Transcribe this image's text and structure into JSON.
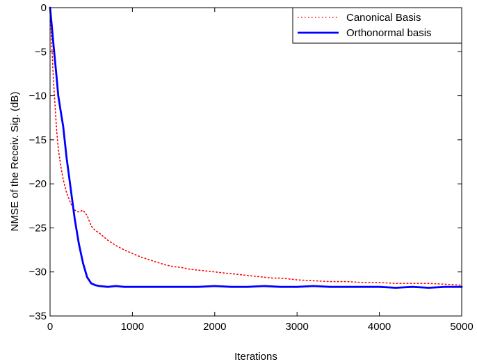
{
  "chart_data": {
    "type": "line",
    "title": "",
    "xlabel": "Iterations",
    "ylabel": "NMSE of the Receiv. Sig. (dB)",
    "xlim": [
      0,
      5000
    ],
    "ylim": [
      -35,
      0
    ],
    "xticks": [
      0,
      1000,
      2000,
      3000,
      4000,
      5000
    ],
    "yticks": [
      0,
      -5,
      -10,
      -15,
      -20,
      -25,
      -30,
      -35
    ],
    "xtick_labels": [
      "0",
      "1000",
      "2000",
      "3000",
      "4000",
      "5000"
    ],
    "ytick_labels": [
      "0",
      "−5",
      "−10",
      "−15",
      "−20",
      "−25",
      "−30",
      "−35"
    ],
    "grid": false,
    "legend_position": "top-right",
    "series": [
      {
        "name": "Canonical Basis",
        "color": "#ff0000",
        "style": "dotted",
        "x": [
          0,
          20,
          40,
          60,
          80,
          100,
          130,
          160,
          200,
          250,
          300,
          350,
          400,
          450,
          500,
          550,
          600,
          700,
          800,
          900,
          1000,
          1100,
          1200,
          1300,
          1400,
          1500,
          1600,
          1700,
          1800,
          1900,
          2000,
          2100,
          2200,
          2300,
          2400,
          2500,
          2600,
          2700,
          2800,
          2900,
          3000,
          3200,
          3400,
          3600,
          3800,
          4000,
          4200,
          4400,
          4600,
          4800,
          5000
        ],
        "y": [
          0,
          -4,
          -8,
          -11,
          -14,
          -16,
          -18,
          -19.5,
          -21,
          -22.2,
          -23,
          -23.2,
          -23,
          -23.6,
          -24.8,
          -25.3,
          -25.6,
          -26.4,
          -27,
          -27.5,
          -27.9,
          -28.3,
          -28.6,
          -28.9,
          -29.2,
          -29.4,
          -29.5,
          -29.7,
          -29.8,
          -29.9,
          -30,
          -30.1,
          -30.2,
          -30.3,
          -30.4,
          -30.5,
          -30.6,
          -30.7,
          -30.7,
          -30.8,
          -30.9,
          -31,
          -31.1,
          -31.1,
          -31.2,
          -31.2,
          -31.3,
          -31.3,
          -31.3,
          -31.4,
          -31.5
        ]
      },
      {
        "name": "Orthonormal basis",
        "color": "#0000ff",
        "style": "solid",
        "x": [
          0,
          20,
          40,
          60,
          80,
          100,
          130,
          160,
          200,
          250,
          300,
          350,
          400,
          450,
          500,
          550,
          600,
          700,
          800,
          900,
          1000,
          1200,
          1400,
          1600,
          1800,
          2000,
          2200,
          2400,
          2600,
          2800,
          3000,
          3200,
          3400,
          3600,
          3800,
          4000,
          4200,
          4400,
          4600,
          4800,
          5000
        ],
        "y": [
          0,
          -2,
          -4,
          -6,
          -8,
          -10,
          -11.8,
          -13.5,
          -17,
          -20.5,
          -24,
          -26.8,
          -29,
          -30.6,
          -31.3,
          -31.5,
          -31.6,
          -31.7,
          -31.6,
          -31.7,
          -31.7,
          -31.7,
          -31.7,
          -31.7,
          -31.7,
          -31.6,
          -31.7,
          -31.7,
          -31.6,
          -31.7,
          -31.7,
          -31.6,
          -31.7,
          -31.7,
          -31.7,
          -31.7,
          -31.8,
          -31.7,
          -31.8,
          -31.7,
          -31.7
        ]
      }
    ]
  }
}
